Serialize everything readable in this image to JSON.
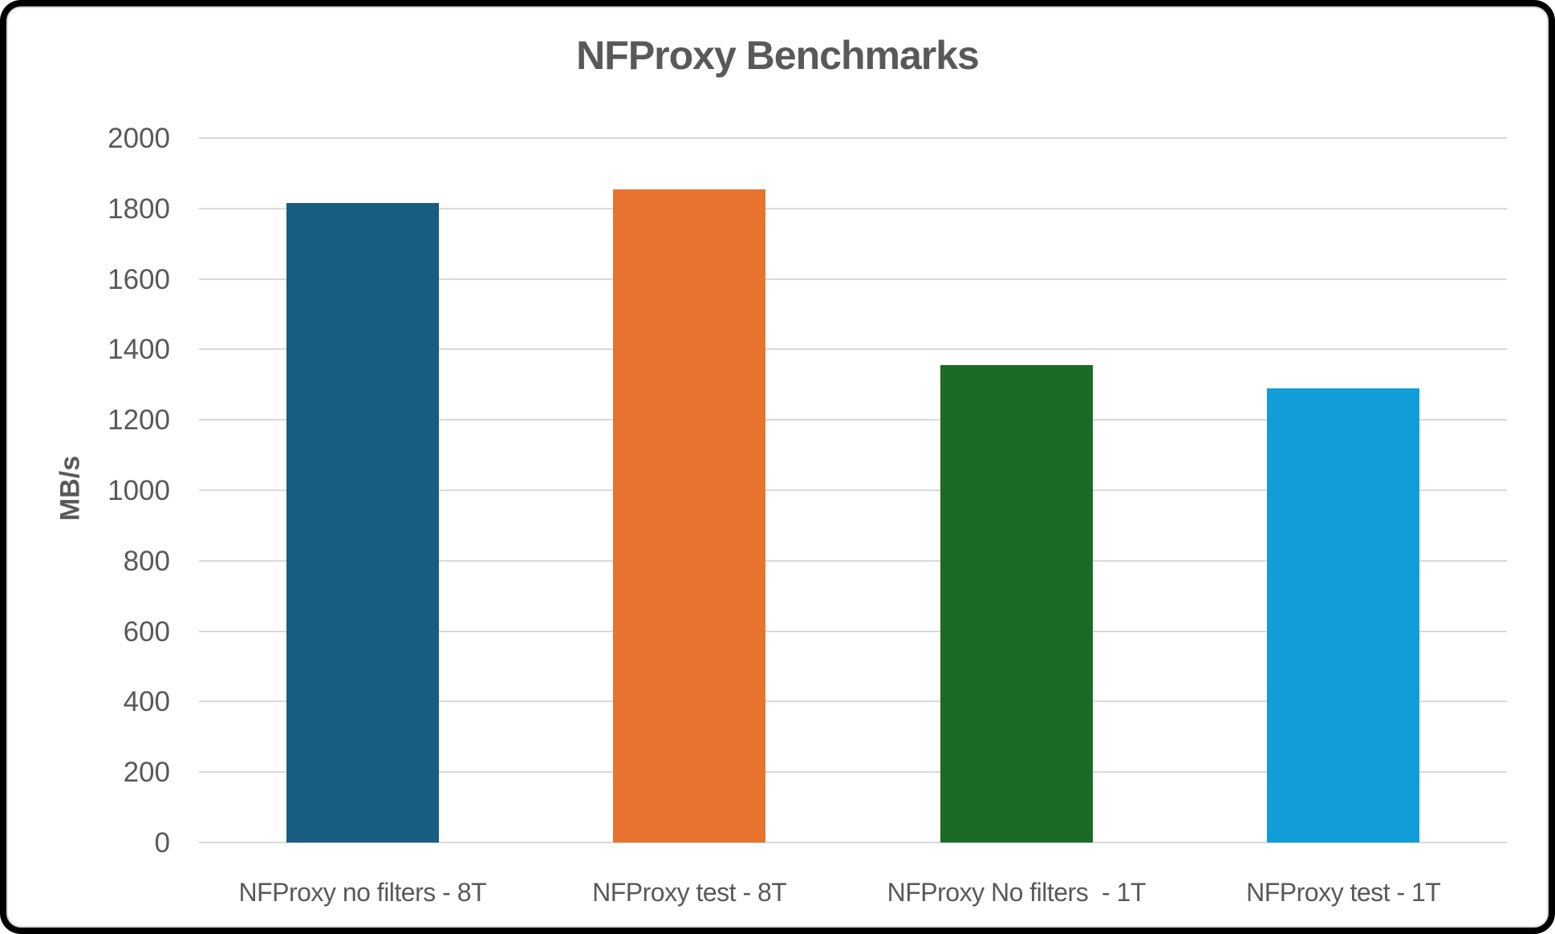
{
  "chart_data": {
    "type": "bar",
    "title": "NFProxy Benchmarks",
    "ylabel": "MB/s",
    "xlabel": "",
    "categories": [
      "NFProxy no filters - 8T",
      "NFProxy test - 8T",
      "NFProxy No filters  - 1T",
      "NFProxy test - 1T"
    ],
    "values": [
      1815,
      1855,
      1355,
      1290
    ],
    "bar_colors": [
      "#175e81",
      "#e8732e",
      "#1c6b24",
      "#119dd8"
    ],
    "ylim": [
      0,
      2000
    ],
    "yticks": [
      0,
      200,
      400,
      600,
      800,
      1000,
      1200,
      1400,
      1600,
      1800,
      2000
    ],
    "grid": true,
    "legend_position": "none",
    "colors": {
      "text": "#595959",
      "gridline": "#d9d9d9",
      "chart_border": "#d9d9d9",
      "outer_frame": "#000000",
      "background": "#ffffff"
    }
  }
}
